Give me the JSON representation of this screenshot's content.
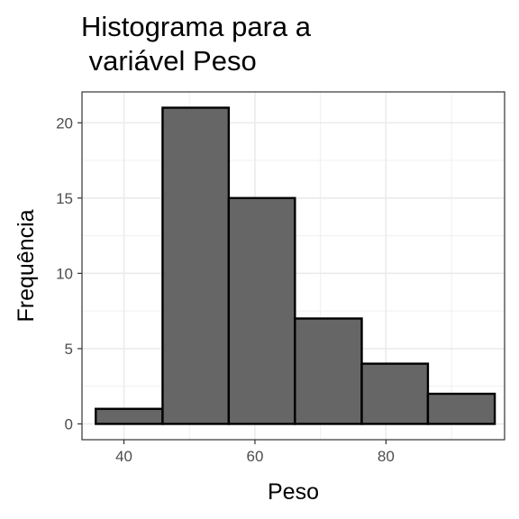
{
  "chart_data": {
    "type": "histogram",
    "title_lines": [
      "Histograma para a",
      " variável Peso"
    ],
    "xlabel": "Peso",
    "ylabel": "Frequência",
    "bins": [
      {
        "x0": 35.7,
        "x1": 45.9,
        "count": 1
      },
      {
        "x0": 45.9,
        "x1": 56.0,
        "count": 21
      },
      {
        "x0": 56.0,
        "x1": 66.1,
        "count": 15
      },
      {
        "x0": 66.1,
        "x1": 76.3,
        "count": 7
      },
      {
        "x0": 76.3,
        "x1": 86.4,
        "count": 4
      },
      {
        "x0": 86.4,
        "x1": 96.6,
        "count": 2
      }
    ],
    "xlim": [
      33.6,
      98.1
    ],
    "ylim": [
      -1.05,
      22.05
    ],
    "xticks": [
      40,
      60,
      80
    ],
    "yticks": [
      0,
      5,
      10,
      15,
      20
    ],
    "grid": true,
    "bar_fill": "#666666",
    "bar_stroke": "#000000"
  }
}
